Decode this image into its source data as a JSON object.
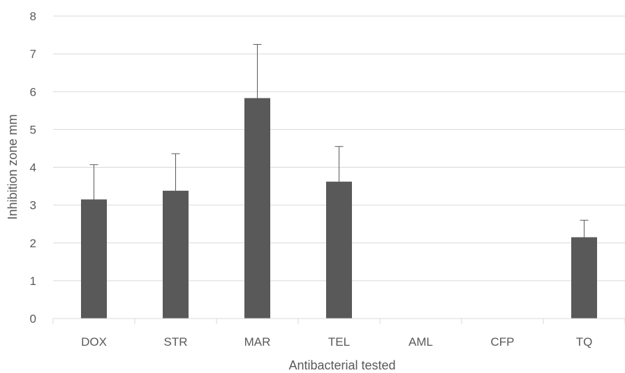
{
  "chart_data": {
    "type": "bar",
    "title": "",
    "xlabel": "Antibacterial tested",
    "ylabel": "Inhibition zone mm",
    "categories": [
      "DOX",
      "STR",
      "MAR",
      "TEL",
      "AML",
      "CFP",
      "TQ"
    ],
    "values": [
      3.15,
      3.38,
      5.83,
      3.62,
      0,
      0,
      2.15
    ],
    "error_plus": [
      0.92,
      0.98,
      1.42,
      0.93,
      0,
      0,
      0.45
    ],
    "ylim": [
      0,
      8
    ],
    "yticks": [
      "0",
      "1",
      "2",
      "3",
      "4",
      "5",
      "6",
      "7",
      "8"
    ],
    "grid": true,
    "legend": "none",
    "colors": {
      "bar": "#595959",
      "grid": "#d9d9d9",
      "text": "#595959",
      "error": "#595959"
    }
  }
}
